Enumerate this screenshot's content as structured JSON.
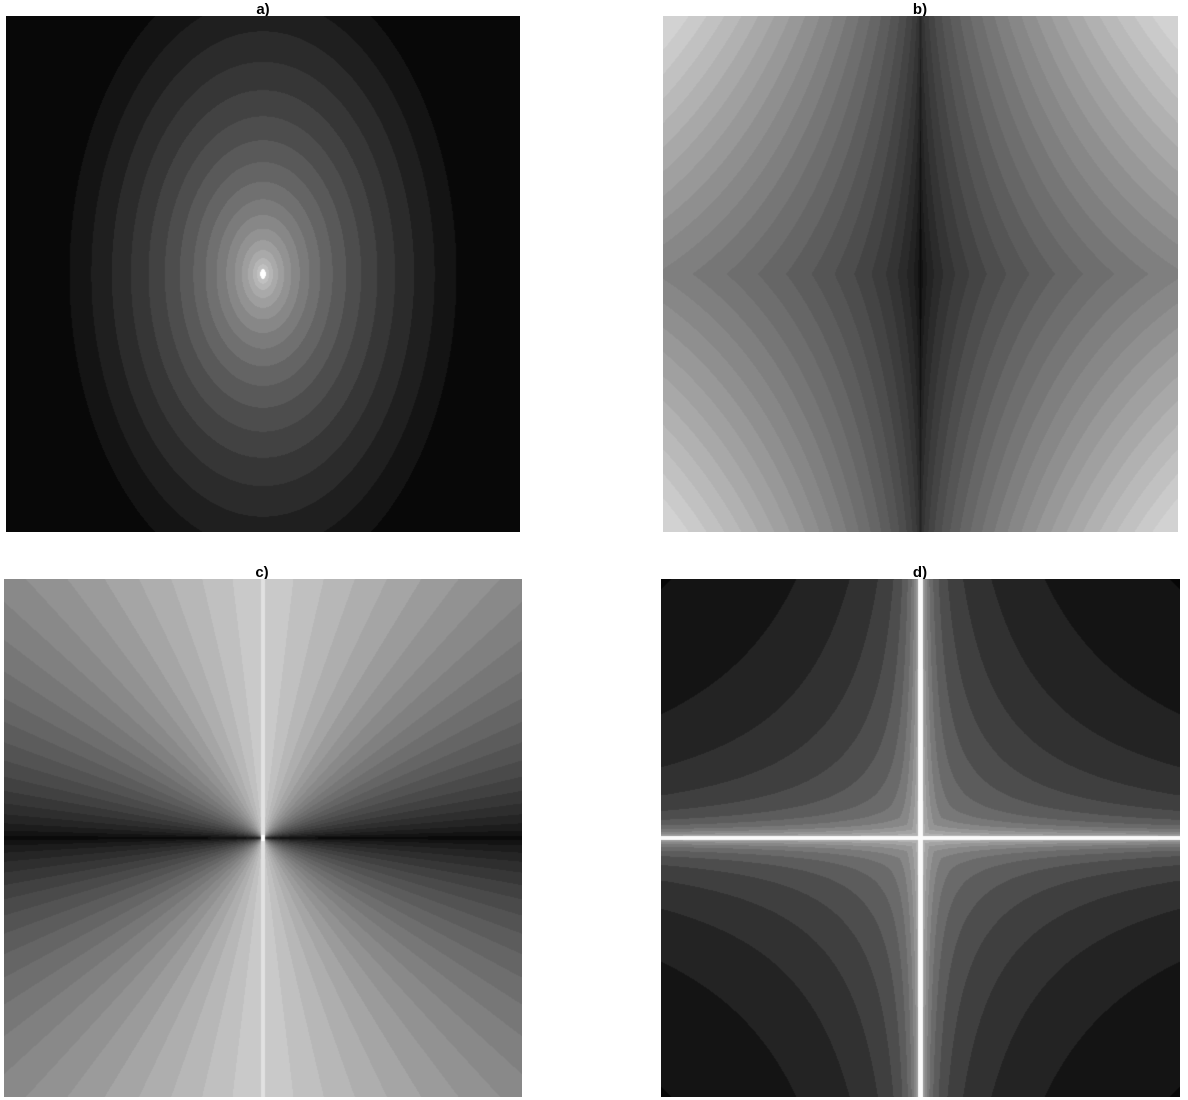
{
  "figure": {
    "panels": [
      {
        "id": "a",
        "label": "a)",
        "pattern": "concentric-elliptical-contours",
        "colormap": "grayscale",
        "center_color": "#ffffff",
        "background_color": "#000000"
      },
      {
        "id": "b",
        "label": "b)",
        "pattern": "saddle-contours",
        "colormap": "grayscale",
        "center_color": "#0a0a0a",
        "background_color": "#cccccc"
      },
      {
        "id": "c",
        "label": "c)",
        "pattern": "radial-fan-contours",
        "colormap": "grayscale",
        "center_color": "#ffffff",
        "background_color": "#999999"
      },
      {
        "id": "d",
        "label": "d)",
        "pattern": "hyperbolic-contours-with-bright-axes",
        "colormap": "grayscale",
        "center_color": "#ffffff",
        "background_color": "#000000"
      }
    ]
  }
}
